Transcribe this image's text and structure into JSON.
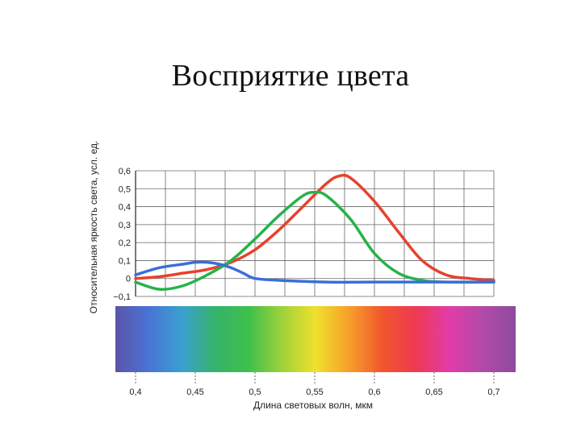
{
  "slide": {
    "title": "Восприятие цвета"
  },
  "chart_data": {
    "type": "line",
    "xlabel": "Длина световых волн, мкм",
    "ylabel": "Относительная яркость света, усл. ед.",
    "xlim": [
      0.4,
      0.7
    ],
    "ylim": [
      -0.1,
      0.6
    ],
    "grid": true,
    "x_ticks": [
      "0,4",
      "0,45",
      "0,5",
      "0,55",
      "0,6",
      "0,65",
      "0,7"
    ],
    "y_ticks": [
      "0,6",
      "0,5",
      "0,4",
      "0,3",
      "0,2",
      "0,1",
      "0",
      "−0,1"
    ],
    "x_tick_values": [
      0.4,
      0.45,
      0.5,
      0.55,
      0.6,
      0.65,
      0.7
    ],
    "y_tick_values": [
      0.6,
      0.5,
      0.4,
      0.3,
      0.2,
      0.1,
      0,
      -0.1
    ],
    "series": [
      {
        "color": "#e8412c",
        "x": [
          0.4,
          0.42,
          0.44,
          0.46,
          0.48,
          0.5,
          0.52,
          0.54,
          0.56,
          0.57,
          0.58,
          0.6,
          0.62,
          0.64,
          0.66,
          0.68,
          0.7
        ],
        "y": [
          0.0,
          0.01,
          0.03,
          0.05,
          0.09,
          0.16,
          0.27,
          0.4,
          0.53,
          0.57,
          0.56,
          0.43,
          0.26,
          0.1,
          0.02,
          0.0,
          -0.01
        ]
      },
      {
        "color": "#27b24a",
        "x": [
          0.4,
          0.42,
          0.44,
          0.46,
          0.48,
          0.5,
          0.52,
          0.54,
          0.55,
          0.56,
          0.58,
          0.6,
          0.62,
          0.64,
          0.66,
          0.7
        ],
        "y": [
          -0.02,
          -0.06,
          -0.04,
          0.02,
          0.1,
          0.22,
          0.35,
          0.46,
          0.48,
          0.46,
          0.33,
          0.14,
          0.03,
          -0.01,
          -0.02,
          -0.02
        ]
      },
      {
        "color": "#3a6fd8",
        "x": [
          0.4,
          0.42,
          0.44,
          0.45,
          0.46,
          0.47,
          0.48,
          0.49,
          0.5,
          0.52,
          0.56,
          0.6,
          0.65,
          0.7
        ],
        "y": [
          0.02,
          0.06,
          0.08,
          0.09,
          0.09,
          0.08,
          0.06,
          0.03,
          0.0,
          -0.01,
          -0.02,
          -0.02,
          -0.02,
          -0.02
        ]
      }
    ],
    "spectrum_colors": [
      "#5b55a8",
      "#4a73d6",
      "#3aa0d0",
      "#35b36a",
      "#3ec04c",
      "#9fd23a",
      "#f0e02c",
      "#f7a02a",
      "#f2562e",
      "#ee3a52",
      "#e23ca8",
      "#b34aa8",
      "#8e4a9e"
    ]
  }
}
